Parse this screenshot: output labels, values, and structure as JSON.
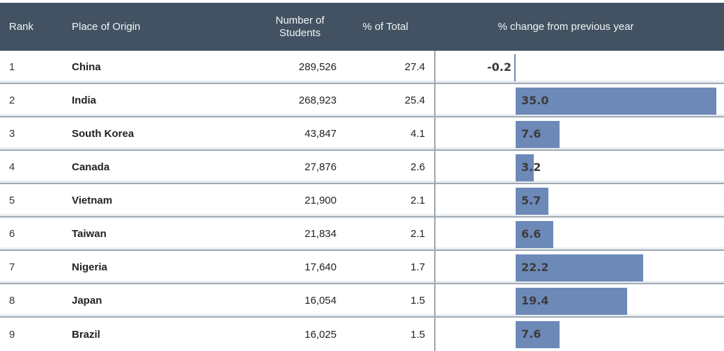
{
  "table": {
    "columns": {
      "rank": "Rank",
      "place": "Place of Origin",
      "students": "Number of Students",
      "pct_total": "% of Total",
      "pct_change": "% change from previous year"
    },
    "rows": [
      {
        "rank": "1",
        "place": "China",
        "students": "289,526",
        "pct_total": "27.4",
        "pct_change": -0.2,
        "pct_change_label": "-0.2"
      },
      {
        "rank": "2",
        "place": "India",
        "students": "268,923",
        "pct_total": "25.4",
        "pct_change": 35.0,
        "pct_change_label": "35.0"
      },
      {
        "rank": "3",
        "place": "South Korea",
        "students": "43,847",
        "pct_total": "4.1",
        "pct_change": 7.6,
        "pct_change_label": "7.6"
      },
      {
        "rank": "4",
        "place": "Canada",
        "students": "27,876",
        "pct_total": "2.6",
        "pct_change": 3.2,
        "pct_change_label": "3.2"
      },
      {
        "rank": "5",
        "place": "Vietnam",
        "students": "21,900",
        "pct_total": "2.1",
        "pct_change": 5.7,
        "pct_change_label": "5.7"
      },
      {
        "rank": "6",
        "place": "Taiwan",
        "students": "21,834",
        "pct_total": "2.1",
        "pct_change": 6.6,
        "pct_change_label": "6.6"
      },
      {
        "rank": "7",
        "place": "Nigeria",
        "students": "17,640",
        "pct_total": "1.7",
        "pct_change": 22.2,
        "pct_change_label": "22.2"
      },
      {
        "rank": "8",
        "place": "Japan",
        "students": "16,054",
        "pct_total": "1.5",
        "pct_change": 19.4,
        "pct_change_label": "19.4"
      },
      {
        "rank": "9",
        "place": "Brazil",
        "students": "16,025",
        "pct_total": "1.5",
        "pct_change": 7.6,
        "pct_change_label": "7.6"
      }
    ]
  },
  "chart_data": {
    "type": "bar",
    "orientation": "horizontal",
    "title": "% change from previous year",
    "categories": [
      "China",
      "India",
      "South Korea",
      "Canada",
      "Vietnam",
      "Taiwan",
      "Nigeria",
      "Japan",
      "Brazil"
    ],
    "values": [
      -0.2,
      35.0,
      7.6,
      3.2,
      5.7,
      6.6,
      22.2,
      19.4,
      7.6
    ],
    "value_labels": [
      "-0.2",
      "35.0",
      "7.6",
      "3.2",
      "5.7",
      "6.6",
      "22.2",
      "19.4",
      "7.6"
    ],
    "xlim": [
      -14,
      36.4
    ],
    "grid": false,
    "legend": false,
    "label_position": "inside-base",
    "bar_color": "#6d89b8"
  },
  "colors": {
    "header_bg": "#425262",
    "header_text": "#f2f5f7",
    "bar": "#6d89b8",
    "row_divider": "#9fa9b3",
    "column_divider": "#9aa5af",
    "bar_label_text": "#3c3c3c"
  }
}
